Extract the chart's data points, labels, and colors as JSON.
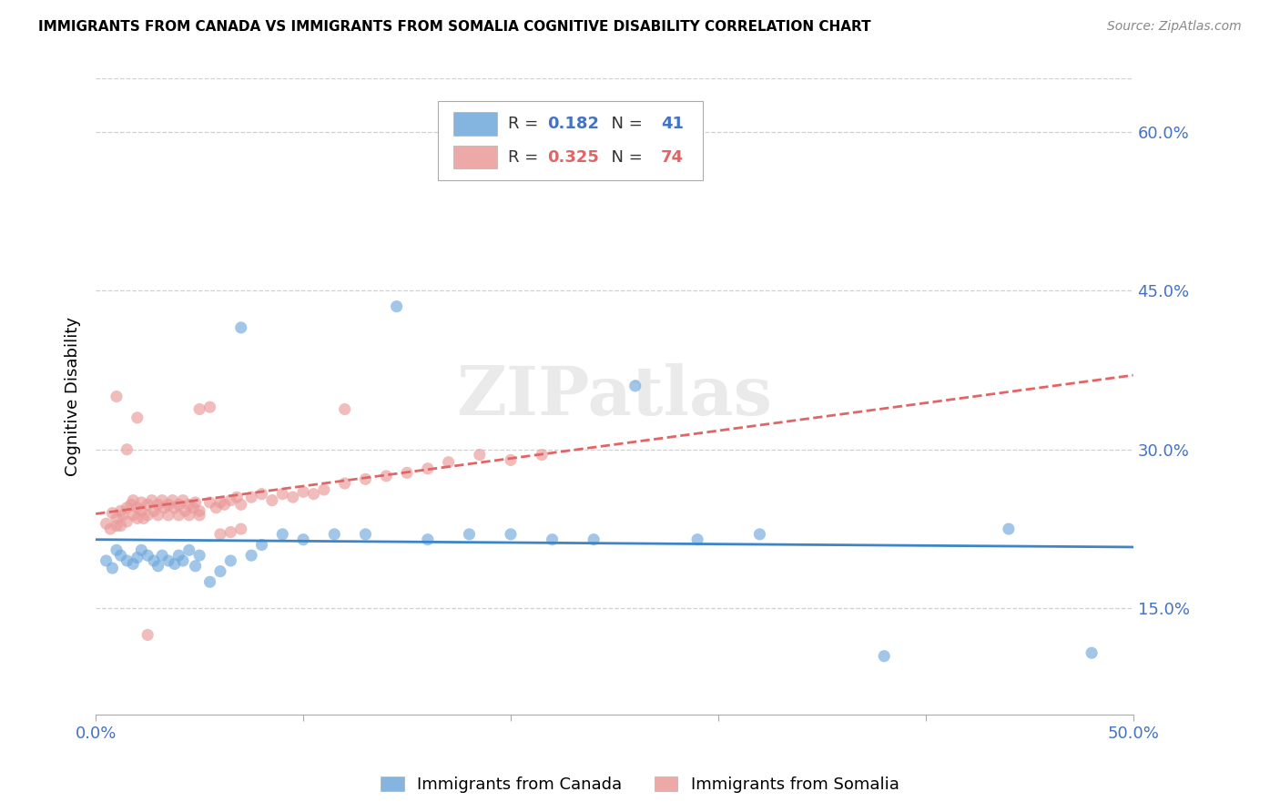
{
  "title": "IMMIGRANTS FROM CANADA VS IMMIGRANTS FROM SOMALIA COGNITIVE DISABILITY CORRELATION CHART",
  "source": "Source: ZipAtlas.com",
  "ylabel": "Cognitive Disability",
  "xlim": [
    0.0,
    0.5
  ],
  "ylim": [
    0.05,
    0.65
  ],
  "yticks": [
    0.15,
    0.3,
    0.45,
    0.6
  ],
  "ytick_labels": [
    "15.0%",
    "30.0%",
    "45.0%",
    "60.0%"
  ],
  "xtick_vals": [
    0.0,
    0.1,
    0.2,
    0.3,
    0.4,
    0.5
  ],
  "xtick_labels": [
    "0.0%",
    "",
    "",
    "",
    "",
    "50.0%"
  ],
  "canada_R": 0.182,
  "canada_N": 41,
  "somalia_R": 0.325,
  "somalia_N": 74,
  "canada_color": "#6fa8dc",
  "somalia_color": "#ea9999",
  "canada_line_color": "#3d85c8",
  "somalia_line_color": "#e06666",
  "watermark": "ZIPatlas",
  "canada_x": [
    0.005,
    0.008,
    0.01,
    0.012,
    0.015,
    0.018,
    0.02,
    0.022,
    0.025,
    0.028,
    0.03,
    0.032,
    0.035,
    0.038,
    0.04,
    0.042,
    0.045,
    0.048,
    0.05,
    0.055,
    0.06,
    0.065,
    0.07,
    0.075,
    0.08,
    0.09,
    0.1,
    0.115,
    0.13,
    0.145,
    0.16,
    0.18,
    0.2,
    0.22,
    0.24,
    0.26,
    0.29,
    0.32,
    0.38,
    0.44,
    0.48
  ],
  "canada_y": [
    0.195,
    0.188,
    0.205,
    0.2,
    0.195,
    0.192,
    0.198,
    0.205,
    0.2,
    0.195,
    0.19,
    0.2,
    0.195,
    0.192,
    0.2,
    0.195,
    0.205,
    0.19,
    0.2,
    0.175,
    0.185,
    0.195,
    0.415,
    0.2,
    0.21,
    0.22,
    0.215,
    0.22,
    0.22,
    0.435,
    0.215,
    0.22,
    0.22,
    0.215,
    0.215,
    0.36,
    0.215,
    0.22,
    0.105,
    0.225,
    0.108
  ],
  "somalia_x": [
    0.005,
    0.007,
    0.008,
    0.01,
    0.01,
    0.012,
    0.012,
    0.013,
    0.015,
    0.015,
    0.017,
    0.018,
    0.018,
    0.02,
    0.02,
    0.022,
    0.022,
    0.023,
    0.025,
    0.025,
    0.027,
    0.028,
    0.03,
    0.03,
    0.032,
    0.033,
    0.035,
    0.035,
    0.037,
    0.038,
    0.04,
    0.04,
    0.042,
    0.043,
    0.045,
    0.045,
    0.047,
    0.048,
    0.05,
    0.05,
    0.055,
    0.058,
    0.06,
    0.062,
    0.065,
    0.068,
    0.07,
    0.075,
    0.08,
    0.085,
    0.09,
    0.095,
    0.1,
    0.105,
    0.11,
    0.12,
    0.13,
    0.14,
    0.15,
    0.16,
    0.17,
    0.185,
    0.2,
    0.215,
    0.12,
    0.05,
    0.055,
    0.06,
    0.065,
    0.07,
    0.01,
    0.015,
    0.02,
    0.025
  ],
  "somalia_y": [
    0.23,
    0.225,
    0.24,
    0.228,
    0.235,
    0.242,
    0.228,
    0.238,
    0.245,
    0.232,
    0.248,
    0.238,
    0.252,
    0.245,
    0.235,
    0.25,
    0.242,
    0.235,
    0.248,
    0.238,
    0.252,
    0.242,
    0.248,
    0.238,
    0.252,
    0.245,
    0.248,
    0.238,
    0.252,
    0.245,
    0.248,
    0.238,
    0.252,
    0.242,
    0.248,
    0.238,
    0.245,
    0.25,
    0.242,
    0.238,
    0.25,
    0.245,
    0.25,
    0.248,
    0.252,
    0.255,
    0.248,
    0.255,
    0.258,
    0.252,
    0.258,
    0.255,
    0.26,
    0.258,
    0.262,
    0.268,
    0.272,
    0.275,
    0.278,
    0.282,
    0.288,
    0.295,
    0.29,
    0.295,
    0.338,
    0.338,
    0.34,
    0.22,
    0.222,
    0.225,
    0.35,
    0.3,
    0.33,
    0.125
  ]
}
